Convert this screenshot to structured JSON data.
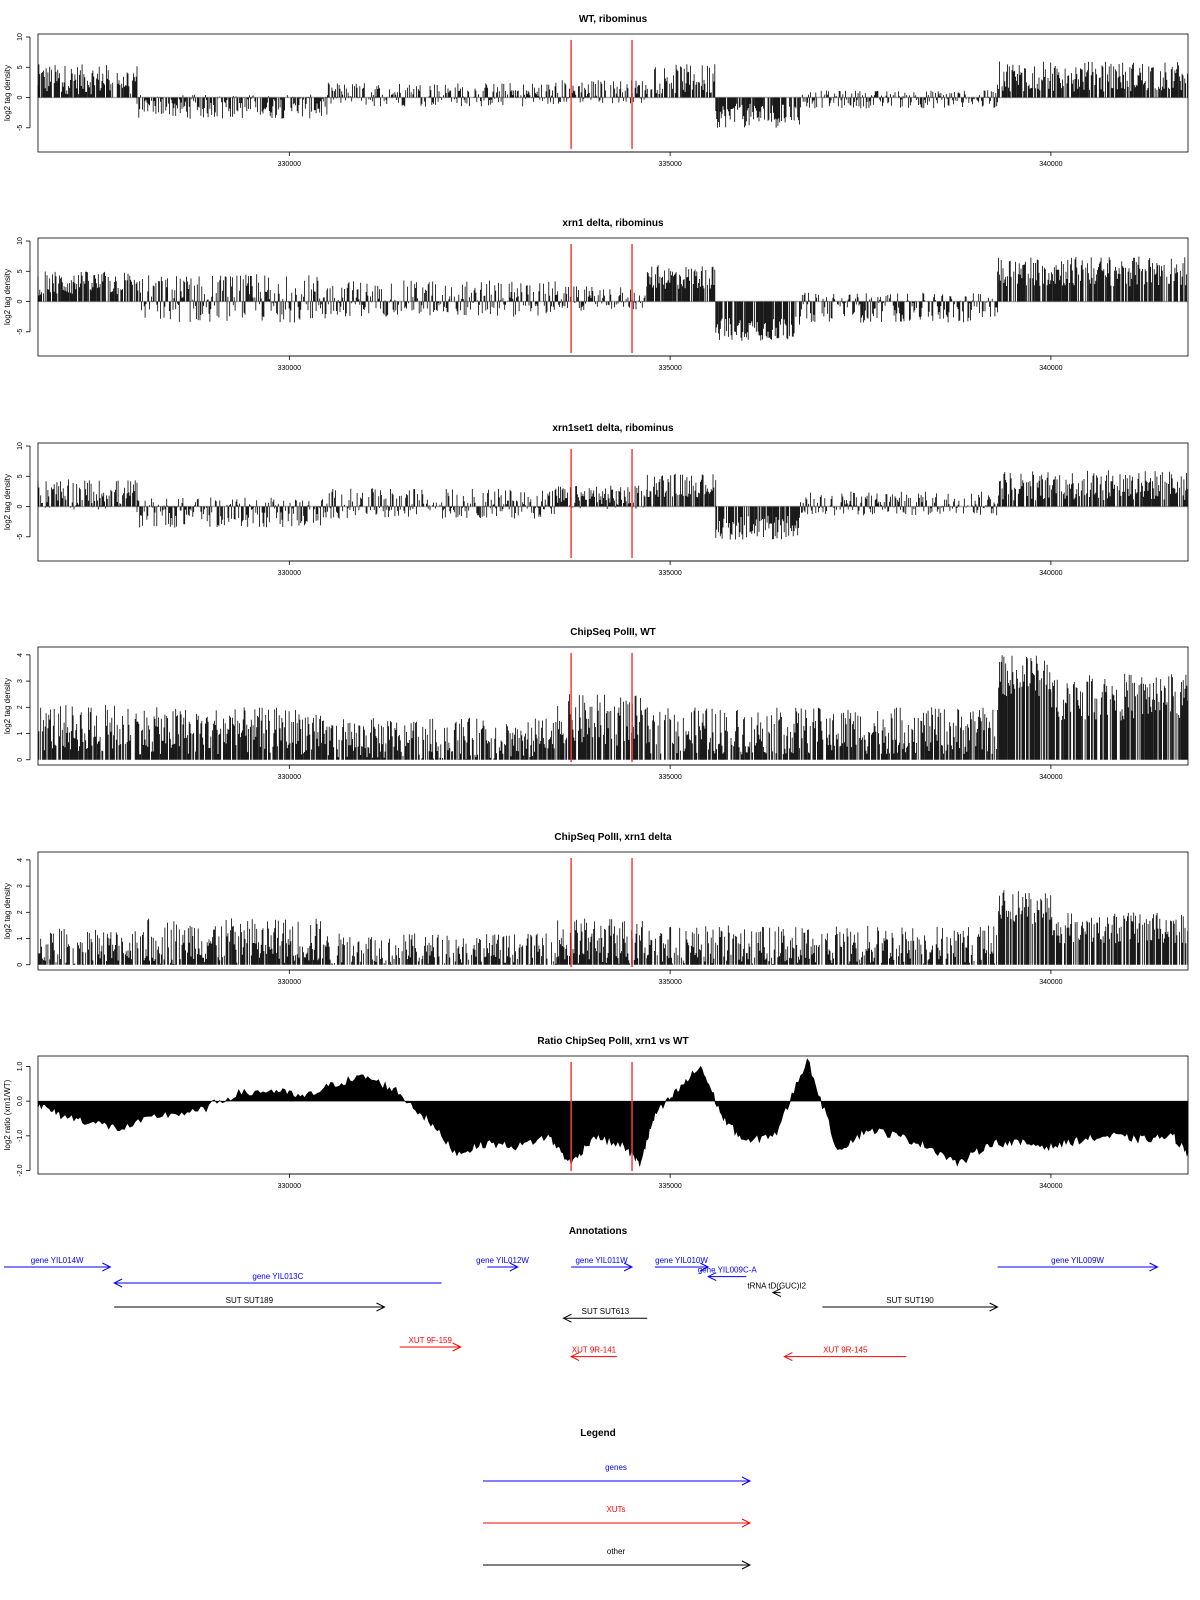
{
  "figure": {
    "xlim": [
      326700,
      341800
    ],
    "x_ticks": [
      330000,
      335000,
      340000
    ],
    "highlight_color": "#ff3b3b",
    "highlight_x": [
      333700,
      334500
    ]
  },
  "chart_data": [
    {
      "type": "bar",
      "title": "WT, ribominus",
      "ylabel": "log2 tag density",
      "ylim": [
        -9,
        10.5
      ],
      "yticks": [
        -5,
        0,
        5,
        10
      ],
      "baseline_color": "#b0b0b0",
      "segments": [
        {
          "x": [
            326700,
            328000
          ],
          "level": 3.0,
          "spread": 2.5
        },
        {
          "x": [
            328000,
            330500
          ],
          "level": -1.5,
          "spread": 2.0
        },
        {
          "x": [
            330500,
            333500
          ],
          "level": 0.5,
          "spread": 2.0
        },
        {
          "x": [
            333500,
            334700
          ],
          "level": 1.0,
          "spread": 2.0
        },
        {
          "x": [
            334700,
            335600
          ],
          "level": 3.0,
          "spread": 2.5
        },
        {
          "x": [
            335600,
            336700
          ],
          "level": -3.0,
          "spread": 2.0
        },
        {
          "x": [
            336700,
            339300
          ],
          "level": -0.3,
          "spread": 1.5
        },
        {
          "x": [
            339300,
            341800
          ],
          "level": 3.5,
          "spread": 2.5
        }
      ]
    },
    {
      "type": "bar",
      "title": "xrn1 delta, ribominus",
      "ylabel": "log2 tag density",
      "ylim": [
        -9,
        10.5
      ],
      "yticks": [
        -5,
        0,
        5,
        10
      ],
      "baseline_color": "#b0b0b0",
      "segments": [
        {
          "x": [
            326700,
            328000
          ],
          "level": 3.0,
          "spread": 2.0
        },
        {
          "x": [
            328000,
            330500
          ],
          "level": 0.5,
          "spread": 4.0
        },
        {
          "x": [
            330500,
            333500
          ],
          "level": 0.5,
          "spread": 3.0
        },
        {
          "x": [
            333500,
            334700
          ],
          "level": 0.5,
          "spread": 2.0
        },
        {
          "x": [
            334700,
            335600
          ],
          "level": 4.0,
          "spread": 2.0
        },
        {
          "x": [
            335600,
            336700
          ],
          "level": -4.5,
          "spread": 2.0
        },
        {
          "x": [
            336700,
            339300
          ],
          "level": -1.0,
          "spread": 2.5
        },
        {
          "x": [
            339300,
            341800
          ],
          "level": 5.0,
          "spread": 2.5
        }
      ]
    },
    {
      "type": "bar",
      "title": "xrn1set1 delta, ribominus",
      "ylabel": "log2 tag density",
      "ylim": [
        -9,
        10.5
      ],
      "yticks": [
        -5,
        0,
        5,
        10
      ],
      "baseline_color": "#b0b0b0",
      "segments": [
        {
          "x": [
            326700,
            328000
          ],
          "level": 2.0,
          "spread": 2.5
        },
        {
          "x": [
            328000,
            330500
          ],
          "level": -1.0,
          "spread": 2.5
        },
        {
          "x": [
            330500,
            333500
          ],
          "level": 0.5,
          "spread": 2.5
        },
        {
          "x": [
            333500,
            334700
          ],
          "level": 1.5,
          "spread": 2.0
        },
        {
          "x": [
            334700,
            335600
          ],
          "level": 3.5,
          "spread": 2.0
        },
        {
          "x": [
            335600,
            336700
          ],
          "level": -3.5,
          "spread": 2.0
        },
        {
          "x": [
            336700,
            339300
          ],
          "level": 0.5,
          "spread": 2.0
        },
        {
          "x": [
            339300,
            341800
          ],
          "level": 3.5,
          "spread": 2.5
        }
      ]
    },
    {
      "type": "bar",
      "title": "ChipSeq PolII, WT",
      "ylabel": "log2 tag density",
      "ylim": [
        -0.2,
        4.3
      ],
      "yticks": [
        0,
        1,
        2,
        3,
        4
      ],
      "baseline_color": null,
      "segments": [
        {
          "x": [
            326700,
            328000
          ],
          "level": 1.2,
          "spread": 0.9
        },
        {
          "x": [
            328000,
            330500
          ],
          "level": 1.1,
          "spread": 0.9
        },
        {
          "x": [
            330500,
            333500
          ],
          "level": 0.8,
          "spread": 0.8
        },
        {
          "x": [
            333500,
            334700
          ],
          "level": 1.5,
          "spread": 1.0
        },
        {
          "x": [
            334700,
            339300
          ],
          "level": 1.1,
          "spread": 0.9
        },
        {
          "x": [
            339300,
            340000
          ],
          "level": 3.2,
          "spread": 0.8
        },
        {
          "x": [
            340000,
            341800
          ],
          "level": 2.4,
          "spread": 0.9
        }
      ]
    },
    {
      "type": "bar",
      "title": "ChipSeq PolII, xrn1 delta",
      "ylabel": "log2 tag density",
      "ylim": [
        -0.2,
        4.3
      ],
      "yticks": [
        0,
        1,
        2,
        3,
        4
      ],
      "baseline_color": null,
      "segments": [
        {
          "x": [
            326700,
            328000
          ],
          "level": 0.6,
          "spread": 0.8
        },
        {
          "x": [
            328000,
            330500
          ],
          "level": 0.9,
          "spread": 0.9
        },
        {
          "x": [
            330500,
            333500
          ],
          "level": 0.5,
          "spread": 0.7
        },
        {
          "x": [
            333500,
            334700
          ],
          "level": 0.9,
          "spread": 0.9
        },
        {
          "x": [
            334700,
            339300
          ],
          "level": 0.7,
          "spread": 0.8
        },
        {
          "x": [
            339300,
            340000
          ],
          "level": 2.2,
          "spread": 0.7
        },
        {
          "x": [
            340000,
            341800
          ],
          "level": 1.4,
          "spread": 0.6
        }
      ]
    },
    {
      "type": "area",
      "title": "Ratio ChipSeq PolII, xrn1 vs WT",
      "ylabel": "log2 ratio (xrn1/WT)",
      "ylim": [
        -2.1,
        1.3
      ],
      "yticks": [
        -2.0,
        -1.0,
        0.0,
        1.0
      ],
      "ytick_labels": [
        "-2.0",
        "-1.0",
        "0.0",
        "1.0"
      ],
      "x": [
        326700,
        327000,
        327400,
        327800,
        328300,
        328800,
        329300,
        329800,
        330200,
        330600,
        331000,
        331400,
        331800,
        332200,
        332600,
        333000,
        333400,
        333700,
        334000,
        334400,
        334600,
        334800,
        335100,
        335400,
        335700,
        336000,
        336400,
        336800,
        337200,
        337600,
        338000,
        338400,
        338800,
        339200,
        339600,
        340000,
        340400,
        340800,
        341200,
        341600,
        341800
      ],
      "y": [
        -0.1,
        -0.4,
        -0.6,
        -0.8,
        -0.4,
        -0.3,
        0.2,
        0.3,
        0.1,
        0.5,
        0.7,
        0.3,
        -0.5,
        -1.5,
        -1.2,
        -1.3,
        -1.0,
        -1.8,
        -1.0,
        -1.3,
        -1.8,
        -0.4,
        0.3,
        1.0,
        -0.5,
        -1.2,
        -0.9,
        1.2,
        -1.4,
        -0.8,
        -1.0,
        -1.3,
        -1.8,
        -1.2,
        -1.2,
        -1.3,
        -1.1,
        -1.0,
        -1.1,
        -1.0,
        -1.5
      ]
    }
  ],
  "annotations": {
    "title": "Annotations",
    "colors": {
      "gene": "#0000ff",
      "xut": "#ff0000",
      "other": "#000000"
    },
    "items": [
      {
        "label": "gene YIL014W",
        "kind": "gene",
        "x1": 325800,
        "x2": 327650,
        "dir": "right",
        "row": 0
      },
      {
        "label": "gene YIL013C",
        "kind": "gene",
        "x1": 327700,
        "x2": 332000,
        "dir": "left",
        "row": 1
      },
      {
        "label": "gene YIL012W",
        "kind": "gene",
        "x1": 332600,
        "x2": 333000,
        "dir": "right",
        "row": 0
      },
      {
        "label": "gene YIL011W",
        "kind": "gene",
        "x1": 333700,
        "x2": 334500,
        "dir": "right",
        "row": 0
      },
      {
        "label": "gene YIL010W",
        "kind": "gene",
        "x1": 334800,
        "x2": 335500,
        "dir": "right",
        "row": 0
      },
      {
        "label": "gene YIL009C-A",
        "kind": "gene",
        "x1": 335500,
        "x2": 336000,
        "dir": "left",
        "row": 0.6
      },
      {
        "label": "tRNA tD(GUC)I2",
        "kind": "other",
        "x1": 336350,
        "x2": 336450,
        "dir": "left",
        "row": 1.6
      },
      {
        "label": "SUT SUT189",
        "kind": "other",
        "x1": 327700,
        "x2": 331250,
        "dir": "right",
        "row": 2.5
      },
      {
        "label": "SUT SUT613",
        "kind": "other",
        "x1": 333600,
        "x2": 334700,
        "dir": "left",
        "row": 3.2
      },
      {
        "label": "SUT SUT190",
        "kind": "other",
        "x1": 337000,
        "x2": 339300,
        "dir": "right",
        "row": 2.5
      },
      {
        "label": "gene YIL009W",
        "kind": "gene",
        "x1": 339300,
        "x2": 341400,
        "dir": "right",
        "row": 0
      },
      {
        "label": "XUT 9F-159",
        "kind": "xut",
        "x1": 331450,
        "x2": 332250,
        "dir": "right",
        "row": 5.0
      },
      {
        "label": "XUT 9R-141",
        "kind": "xut",
        "x1": 333700,
        "x2": 334300,
        "dir": "left",
        "row": 5.6
      },
      {
        "label": "XUT 9R-145",
        "kind": "xut",
        "x1": 336500,
        "x2": 338100,
        "dir": "left",
        "row": 5.6
      }
    ]
  },
  "legend": {
    "title": "Legend",
    "items": [
      {
        "label": "genes",
        "kind": "gene"
      },
      {
        "label": "XUTs",
        "kind": "xut"
      },
      {
        "label": "other",
        "kind": "other"
      }
    ]
  }
}
